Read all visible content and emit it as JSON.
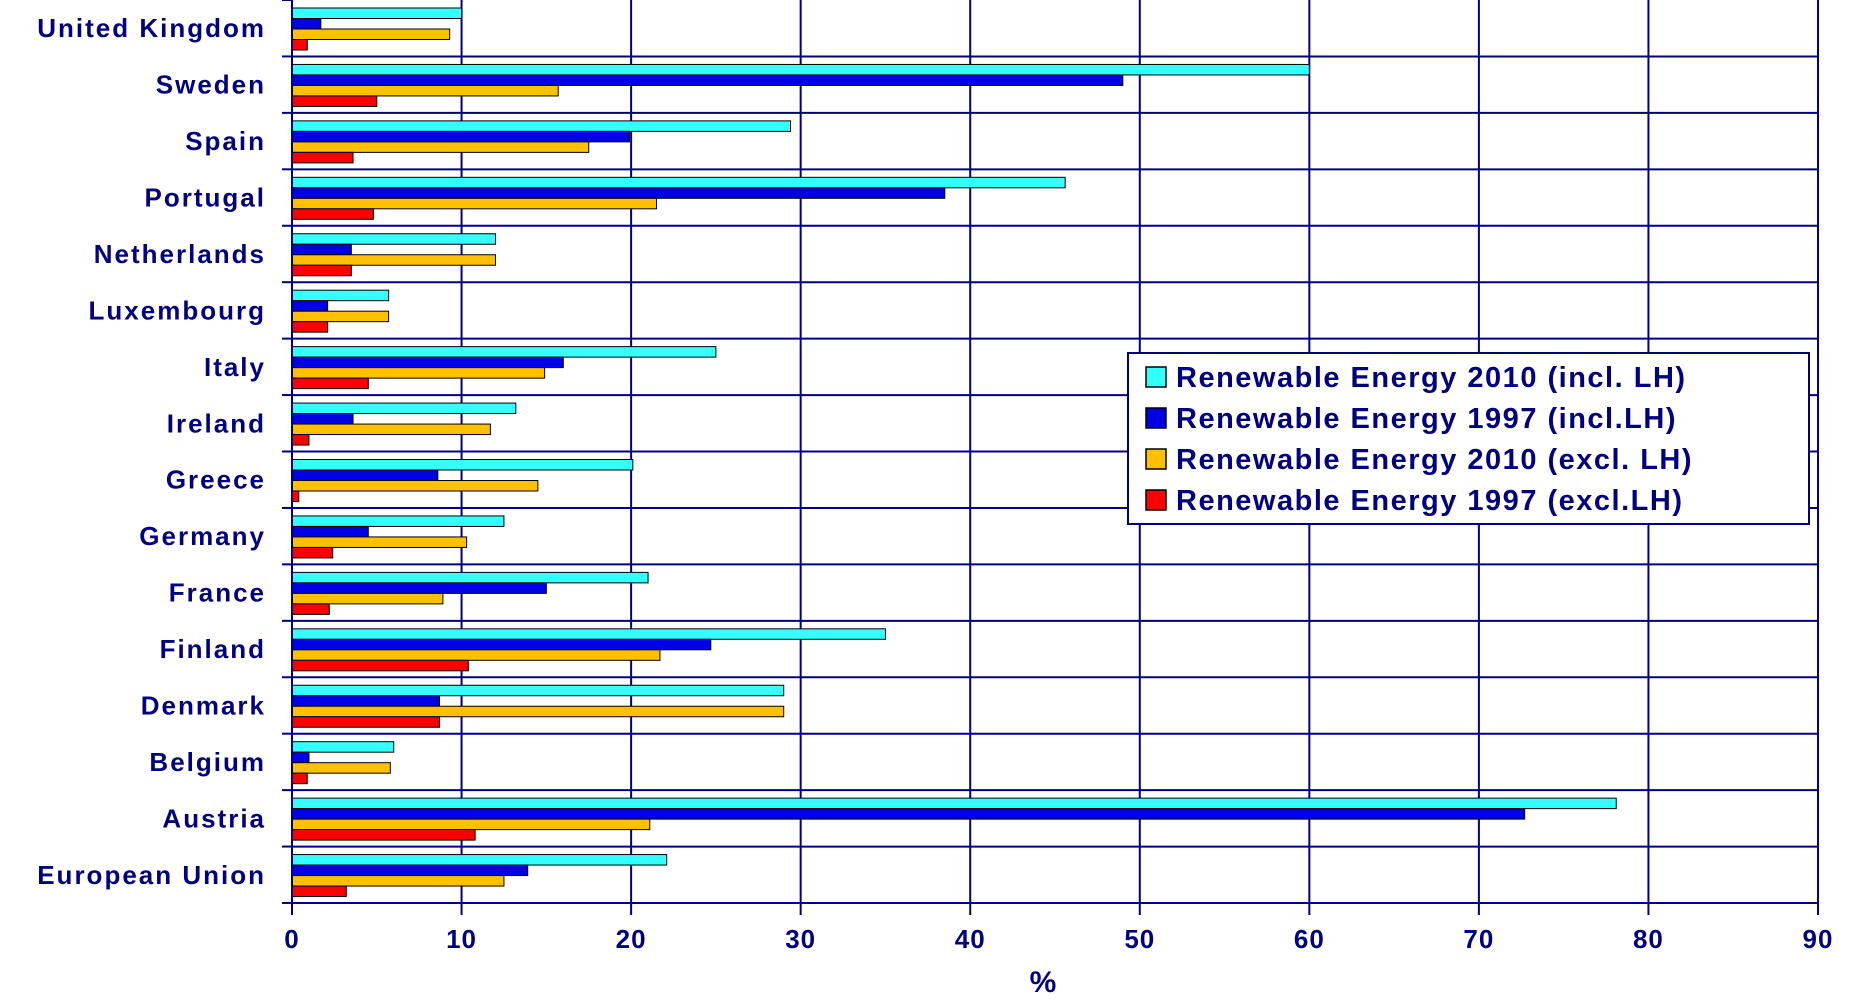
{
  "chart_data": {
    "type": "bar",
    "orientation": "horizontal",
    "categories": [
      "United Kingdom",
      "Sweden",
      "Spain",
      "Portugal",
      "Netherlands",
      "Luxembourg",
      "Italy",
      "Ireland",
      "Greece",
      "Germany",
      "France",
      "Finland",
      "Denmark",
      "Belgium",
      "Austria",
      "European Union"
    ],
    "series": [
      {
        "name": "Renewable Energy 2010 (incl. LH)",
        "color": "#33ffff",
        "values": [
          10,
          60,
          29.4,
          45.6,
          12,
          5.7,
          25,
          13.2,
          20.1,
          12.5,
          21,
          35,
          29,
          6,
          78.1,
          22.1
        ]
      },
      {
        "name": "Renewable Energy 1997 (incl.LH)",
        "color": "#0000e6",
        "values": [
          1.7,
          49,
          19.9,
          38.5,
          3.5,
          2.1,
          16,
          3.6,
          8.6,
          4.5,
          15,
          24.7,
          8.7,
          1,
          72.7,
          13.9
        ]
      },
      {
        "name": "Renewable Energy 2010 (excl. LH)",
        "color": "#ffc000",
        "values": [
          9.3,
          15.7,
          17.5,
          21.5,
          12,
          5.7,
          14.9,
          11.7,
          14.5,
          10.3,
          8.9,
          21.7,
          29,
          5.8,
          21.1,
          12.5
        ]
      },
      {
        "name": "Renewable Energy 1997 (excl.LH)",
        "color": "#ff0000",
        "values": [
          0.9,
          5,
          3.6,
          4.8,
          3.5,
          2.1,
          4.5,
          1,
          0.4,
          2.4,
          2.2,
          10.4,
          8.7,
          0.9,
          10.8,
          3.2
        ]
      }
    ],
    "xlabel": "%",
    "xlim": [
      0,
      90
    ],
    "xticks": [
      "0",
      "10",
      "20",
      "30",
      "40",
      "50",
      "60",
      "70",
      "80",
      "90"
    ],
    "grid": true,
    "legend_position": "right"
  }
}
